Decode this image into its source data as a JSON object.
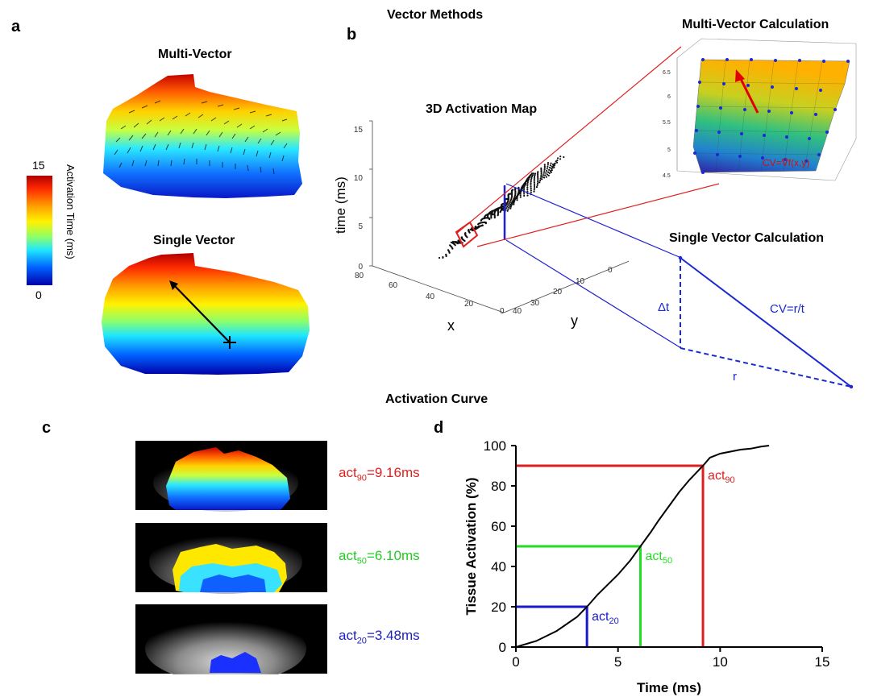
{
  "panels": {
    "a": "a",
    "b": "b",
    "c": "c",
    "d": "d"
  },
  "headings": {
    "vector_methods": "Vector Methods",
    "multi_vector": "Multi-Vector",
    "single_vector": "Single Vector",
    "activation_map_3d": "3D Activation Map",
    "multi_vector_calc": "Multi-Vector Calculation",
    "single_vector_calc": "Single Vector Calculation",
    "activation_curve": "Activation Curve"
  },
  "colorbar": {
    "max": "15",
    "min": "0",
    "label": "Activation Time (ms)"
  },
  "map3d": {
    "zlabel": "time (ms)",
    "xlabel": "x",
    "ylabel": "y",
    "z_ticks": [
      "15",
      "10",
      "5",
      "0"
    ],
    "x_ticks": [
      "80",
      "60",
      "40",
      "20",
      "0"
    ],
    "y_ticks": [
      "40",
      "30",
      "20",
      "10",
      "0"
    ]
  },
  "multi_vector_calc": {
    "formula": "CV=∇f(x,y)",
    "z_ticks": [
      "6.5",
      "6",
      "5.5",
      "5",
      "4.5"
    ]
  },
  "single_vector_calc": {
    "dt": "Δt",
    "cv": "CV=r/t",
    "r": "r"
  },
  "panel_c": {
    "labels": [
      {
        "base": "act",
        "sub": "90",
        "value": "=9.16ms",
        "color": "#e02020"
      },
      {
        "base": "act",
        "sub": "50",
        "value": "=6.10ms",
        "color": "#22cc22"
      },
      {
        "base": "act",
        "sub": "20",
        "value": "=3.48ms",
        "color": "#2020c0"
      }
    ]
  },
  "chart_data": {
    "type": "line",
    "title": "",
    "xlabel": "Time (ms)",
    "ylabel": "Tissue Activation (%)",
    "xlim": [
      0,
      15
    ],
    "ylim": [
      0,
      100
    ],
    "x_ticks": [
      0,
      5,
      10,
      15
    ],
    "y_ticks": [
      0,
      20,
      40,
      60,
      80,
      100
    ],
    "series": [
      {
        "x": [
          0,
          1,
          2,
          3,
          3.48,
          4,
          5,
          5.6,
          6.1,
          6.6,
          7,
          7.5,
          8,
          8.5,
          9.16,
          9.5,
          10,
          10.5,
          11,
          11.5,
          12,
          12.4
        ],
        "y": [
          0,
          3,
          8,
          15,
          20,
          26,
          36,
          43,
          50,
          57,
          63,
          70,
          77,
          83,
          90,
          94,
          96,
          97,
          98,
          98.5,
          99.5,
          100
        ]
      }
    ],
    "annotations": [
      {
        "base": "act",
        "sub": "90",
        "x": 9.16,
        "y": 90,
        "color": "#dd1f1f"
      },
      {
        "base": "act",
        "sub": "50",
        "x": 6.1,
        "y": 50,
        "color": "#22dd22"
      },
      {
        "base": "act",
        "sub": "20",
        "x": 3.48,
        "y": 20,
        "color": "#1a1acc"
      }
    ]
  }
}
